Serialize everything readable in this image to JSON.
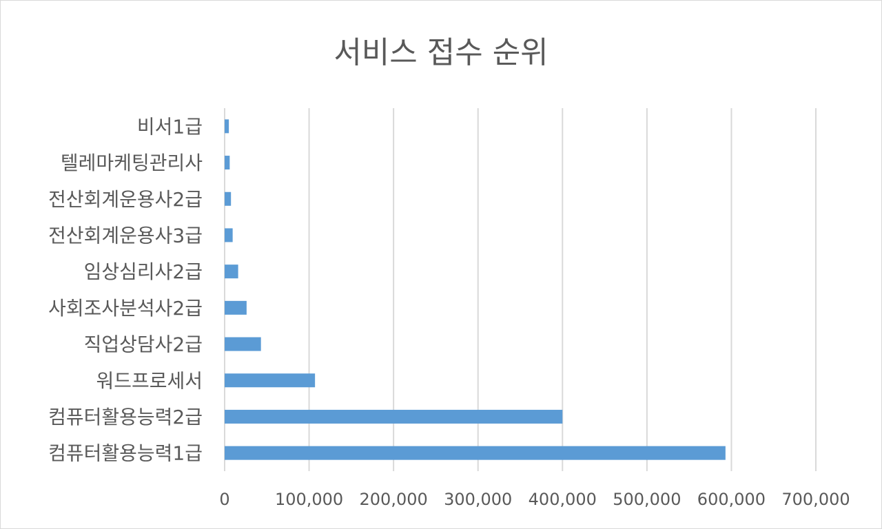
{
  "chart_data": {
    "type": "bar",
    "orientation": "horizontal",
    "title": "서비스 접수 순위",
    "categories": [
      "비서1급",
      "텔레마케팅관리사",
      "전산회계운용사2급",
      "전산회계운용사3급",
      "임상심리사2급",
      "사회조사분석사2급",
      "직업상담사2급",
      "워드프로세서",
      "컴퓨터활용능력2급",
      "컴퓨터활용능력1급"
    ],
    "values": [
      5000,
      6000,
      7500,
      9500,
      16000,
      26000,
      43000,
      107000,
      400000,
      593000
    ],
    "xlabel": "",
    "ylabel": "",
    "xlim": [
      0,
      700000
    ],
    "x_ticks": [
      "0",
      "100,000",
      "200,000",
      "300,000",
      "400,000",
      "500,000",
      "600,000",
      "700,000"
    ],
    "x_tick_values": [
      0,
      100000,
      200000,
      300000,
      400000,
      500000,
      600000,
      700000
    ],
    "grid": "vertical",
    "legend": "none",
    "bar_color": "#5b9bd5",
    "grid_color": "#d9d9d9"
  }
}
